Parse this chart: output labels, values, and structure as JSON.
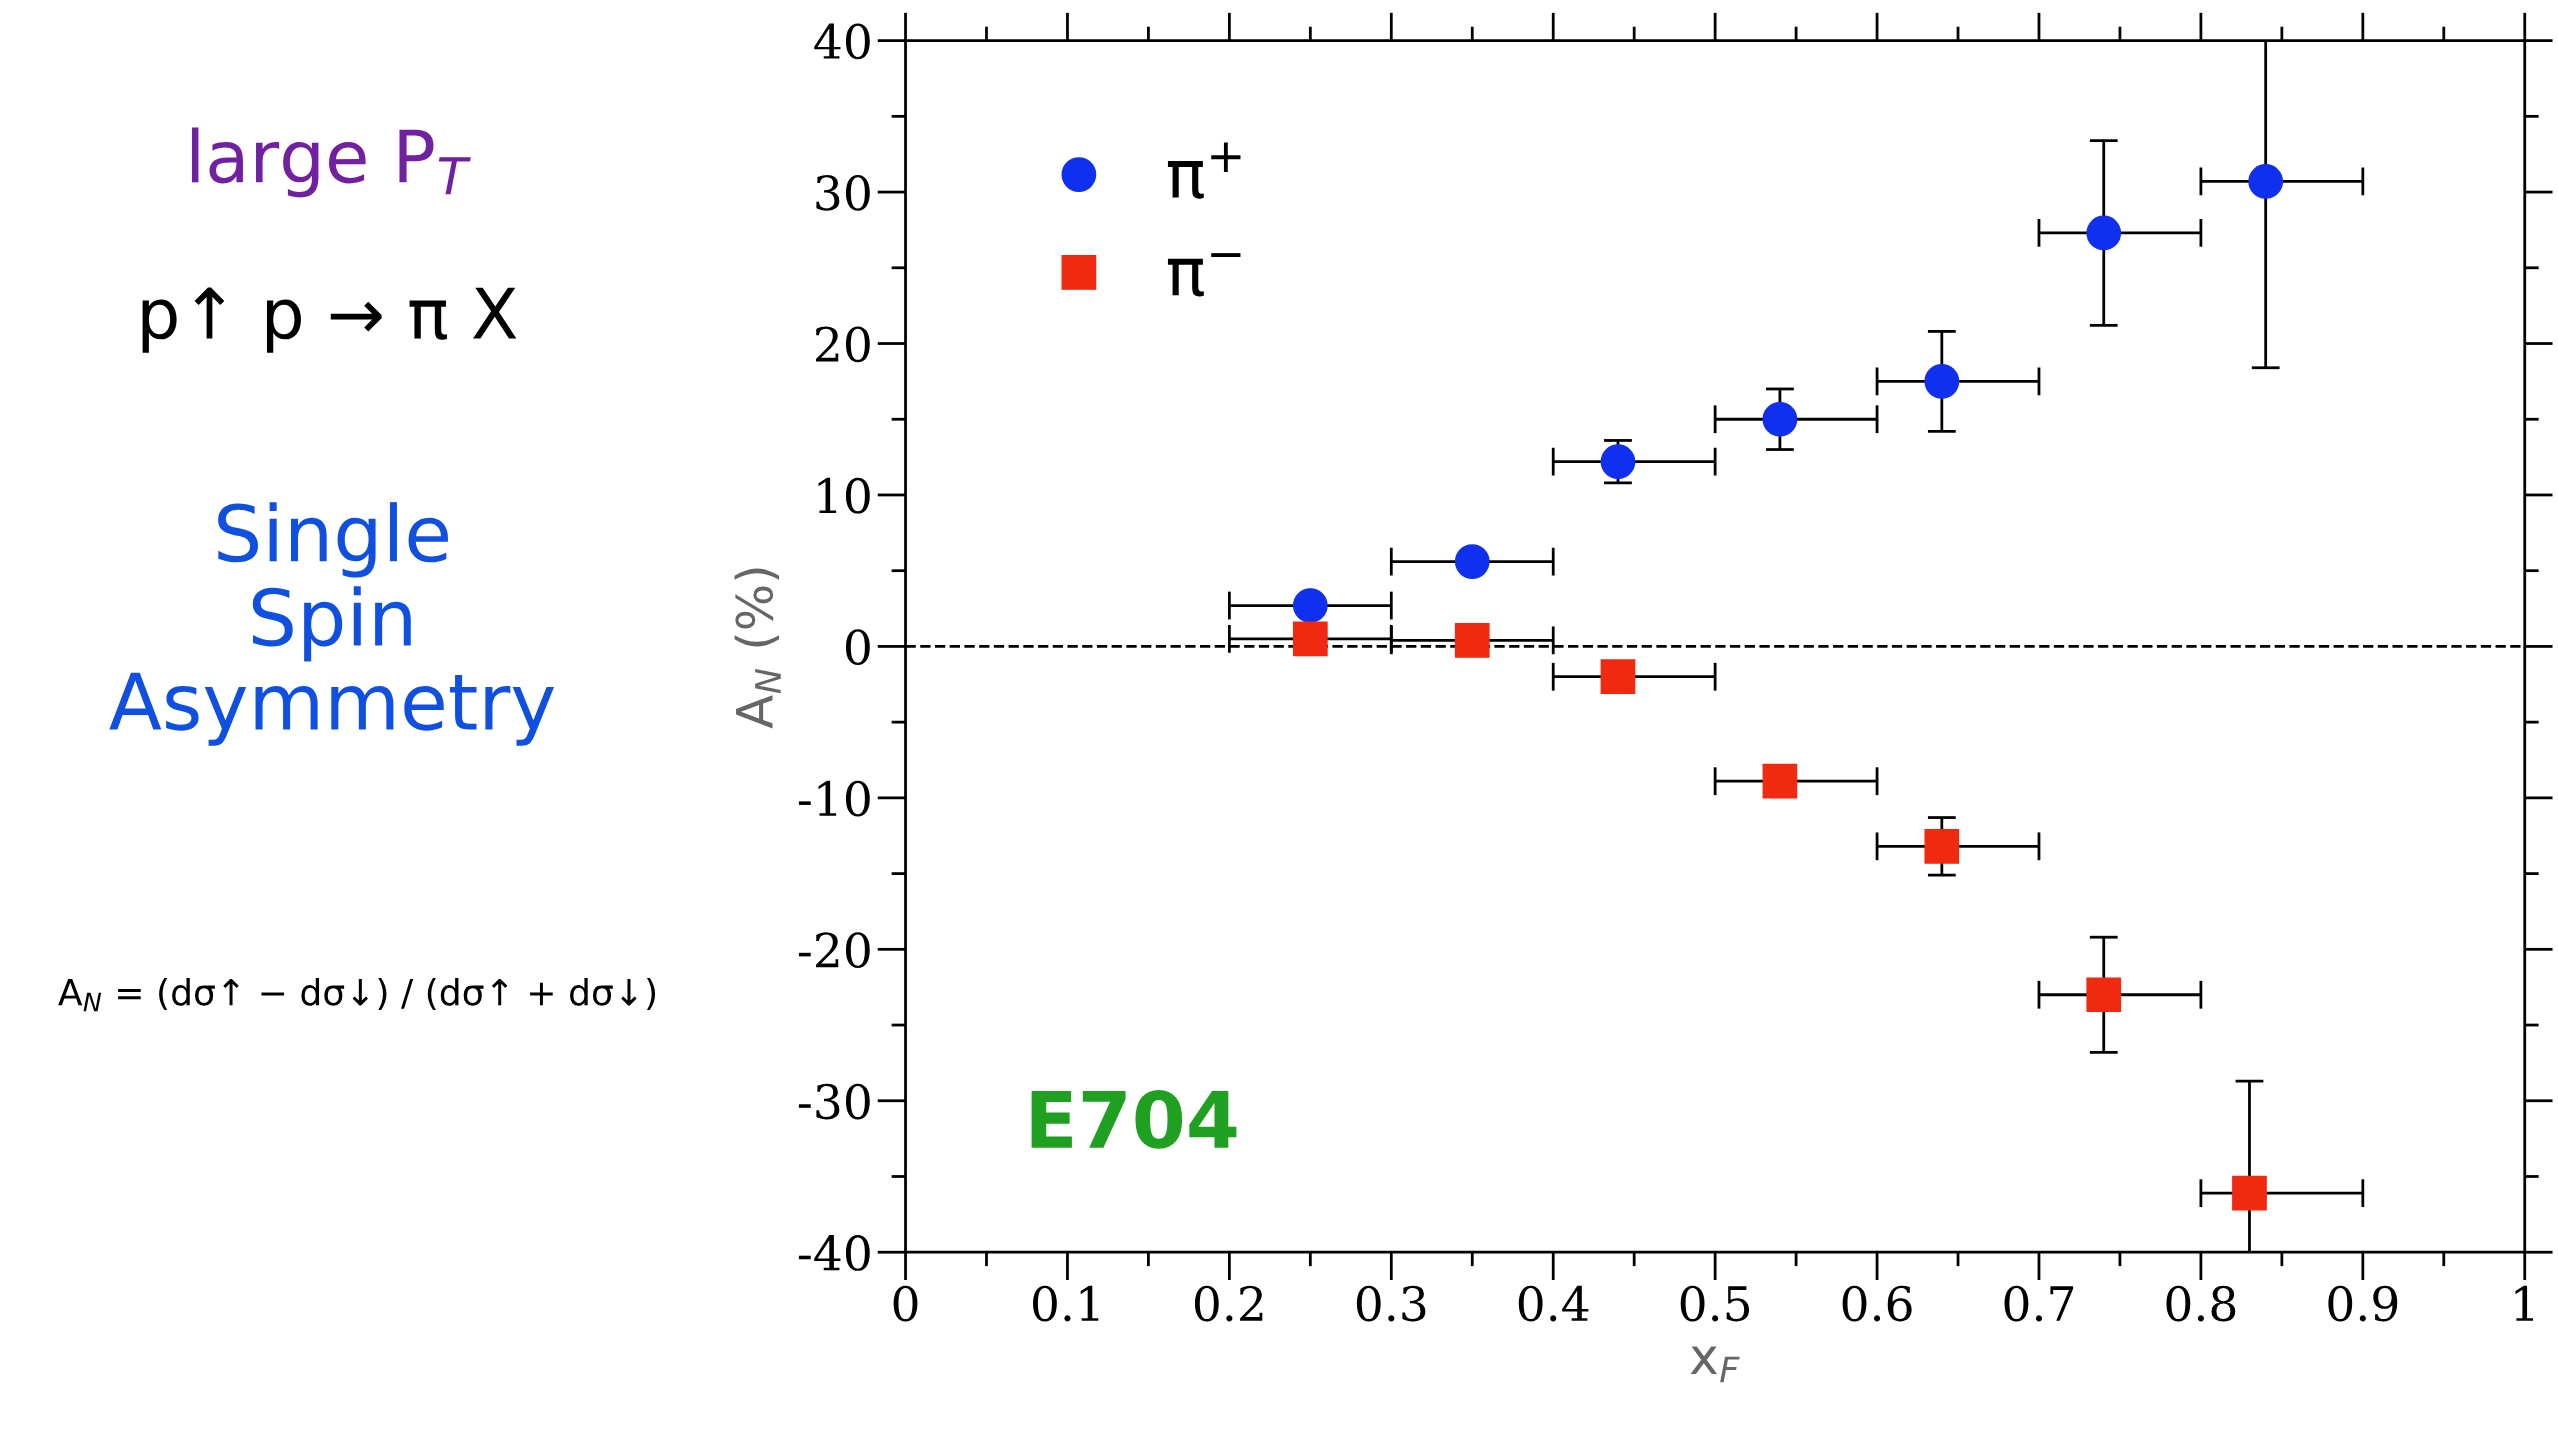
{
  "chart_data": {
    "type": "scatter",
    "xlabel": "x$_{F}$",
    "ylabel": "A$_{N}$ (%)",
    "xlim": [
      0,
      1
    ],
    "xticks": [
      0,
      0.1,
      0.2,
      0.3,
      0.4,
      0.5,
      0.6,
      0.7,
      0.8,
      0.9,
      1
    ],
    "ylim": [
      -40,
      40
    ],
    "yticks": [
      -40,
      -30,
      -20,
      -10,
      0,
      10,
      20,
      30,
      40
    ],
    "legend": "top left",
    "grid": false,
    "ref_lines": [
      {
        "axis": "y",
        "value": 0,
        "line_style": "dashed",
        "color": "#000000"
      }
    ],
    "annotations": [
      "large P$_{T}$",
      "p↑ p → π X",
      "Single\nSpin\nAsymmetry",
      "A$_{N}$ = (dσ↑ − dσ↓) / (dσ↑ + dσ↓)",
      "E704"
    ],
    "series": [
      {
        "name": "π$^{+}$",
        "color": "#1030f0",
        "marker": "circle",
        "x": [
          0.25,
          0.35,
          0.44,
          0.54,
          0.64,
          0.74,
          0.84
        ],
        "values": [
          2.7,
          5.6,
          12.2,
          15.0,
          17.5,
          27.3,
          30.7
        ],
        "errors": [
          null,
          null,
          1.4,
          2.0,
          3.3,
          6.1,
          [
            18.4,
            40
          ]
        ],
        "xerrors": [
          0.05,
          0.05,
          [
            0.4,
            0.5
          ],
          [
            0.5,
            0.6
          ],
          [
            0.6,
            0.7
          ],
          [
            0.7,
            0.8
          ],
          [
            0.8,
            0.9
          ]
        ]
      },
      {
        "name": "π$^{−}$",
        "color": "#f02a10",
        "marker": "square",
        "x": [
          0.25,
          0.35,
          0.44,
          0.54,
          0.64,
          0.74,
          0.83
        ],
        "values": [
          0.5,
          0.4,
          -2.0,
          -8.9,
          -13.2,
          -23.0,
          -36.1
        ],
        "errors": [
          null,
          null,
          null,
          null,
          1.9,
          3.8,
          7.4
        ],
        "xerrors": [
          0.05,
          0.05,
          [
            0.4,
            0.5
          ],
          [
            0.5,
            0.6
          ],
          [
            0.6,
            0.7
          ],
          [
            0.7,
            0.8
          ],
          [
            0.8,
            0.9
          ]
        ]
      }
    ]
  }
}
